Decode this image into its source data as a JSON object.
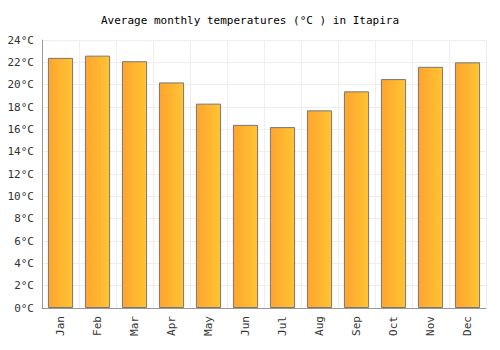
{
  "chart_data": {
    "type": "bar",
    "title": "Average monthly temperatures (°C ) in Itapira",
    "categories": [
      "Jan",
      "Feb",
      "Mar",
      "Apr",
      "May",
      "Jun",
      "Jul",
      "Aug",
      "Sep",
      "Oct",
      "Nov",
      "Dec"
    ],
    "values": [
      22.4,
      22.6,
      22.1,
      20.2,
      18.3,
      16.4,
      16.2,
      17.7,
      19.4,
      20.5,
      21.6,
      22.0
    ],
    "color": "#ffa42e",
    "ylim": [
      0,
      24
    ],
    "yticks": [
      {
        "value": 0,
        "label": "0°C"
      },
      {
        "value": 2,
        "label": "2°C"
      },
      {
        "value": 4,
        "label": "4°C"
      },
      {
        "value": 6,
        "label": "6°C"
      },
      {
        "value": 8,
        "label": "8°C"
      },
      {
        "value": 10,
        "label": "10°C"
      },
      {
        "value": 12,
        "label": "12°C"
      },
      {
        "value": 14,
        "label": "14°C"
      },
      {
        "value": 16,
        "label": "16°C"
      },
      {
        "value": 18,
        "label": "18°C"
      },
      {
        "value": 20,
        "label": "20°C"
      },
      {
        "value": 22,
        "label": "22°C"
      },
      {
        "value": 24,
        "label": "24°C"
      }
    ],
    "grid": true
  }
}
